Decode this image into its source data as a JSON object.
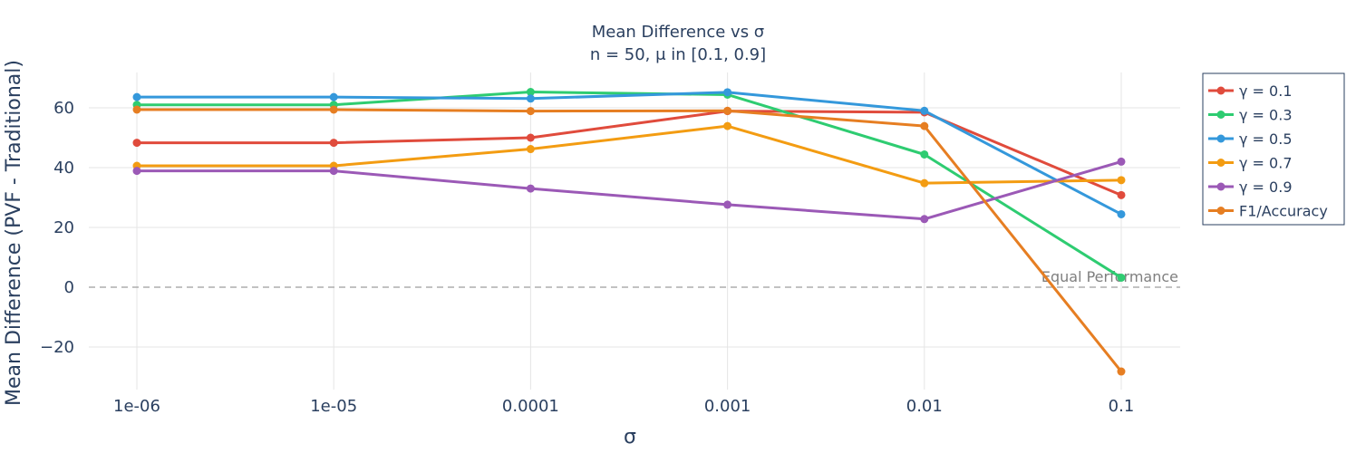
{
  "chart_data": {
    "type": "line",
    "title": "Mean Difference vs σ",
    "subtitle": "n = 50, μ in [0.1, 0.9]",
    "xlabel": "σ",
    "ylabel": "Mean Difference (PVF - Traditional)",
    "x_scale": "log",
    "x": [
      "1e-06",
      "1e-05",
      "0.0001",
      "0.001",
      "0.01",
      "0.1"
    ],
    "x_values": [
      1e-06,
      1e-05,
      0.0001,
      0.001,
      0.01,
      0.1
    ],
    "ylim": [
      -35,
      72
    ],
    "yticks": [
      -20,
      0,
      20,
      40,
      60
    ],
    "ytick_labels": [
      "−20",
      "0",
      "20",
      "40",
      "60"
    ],
    "grid": true,
    "legend_position": "right",
    "series": [
      {
        "name": "γ = 0.1",
        "color": "#e04b3c",
        "values": [
          48.3,
          48.3,
          50.0,
          58.9,
          58.5,
          30.8
        ]
      },
      {
        "name": "γ = 0.3",
        "color": "#2ecc71",
        "values": [
          61.0,
          61.0,
          65.3,
          64.4,
          44.4,
          3.2
        ]
      },
      {
        "name": "γ = 0.5",
        "color": "#3498db",
        "values": [
          63.6,
          63.6,
          63.1,
          65.2,
          59.0,
          24.4
        ]
      },
      {
        "name": "γ = 0.7",
        "color": "#f39c12",
        "values": [
          40.6,
          40.6,
          46.2,
          53.9,
          34.8,
          35.8
        ]
      },
      {
        "name": "γ = 0.9",
        "color": "#9b59b6",
        "values": [
          38.9,
          38.9,
          33.0,
          27.6,
          22.8,
          42.0
        ]
      },
      {
        "name": "F1/Accuracy",
        "color": "#e67e22",
        "values": [
          59.4,
          59.4,
          58.9,
          59.0,
          53.9,
          -28.2
        ]
      }
    ],
    "reference_line": {
      "y": 0,
      "label": "Equal Performance",
      "color": "#9e9e9e"
    }
  }
}
